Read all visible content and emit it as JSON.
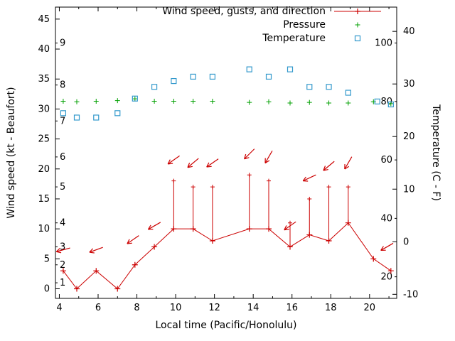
{
  "axes": {
    "x_label": "Local time (Pacific/Honolulu)",
    "y_left_label": "Wind speed (kt - Beaufort)",
    "y_right_label": "Temperature (C - F)"
  },
  "legend": {
    "position": "top-right-inside",
    "items": [
      {
        "label": "Wind speed, gusts, and direction",
        "series": "wind",
        "marker": "red-line-plus"
      },
      {
        "label": "Pressure",
        "series": "pressure",
        "marker": "green-plus"
      },
      {
        "label": "Temperature",
        "series": "temperature",
        "marker": "blue-open-square"
      }
    ]
  },
  "chart_data": {
    "type": "line",
    "title": "",
    "grid": false,
    "x_axis": {
      "label": "Local time (Pacific/Honolulu)",
      "range": [
        3.8,
        21.4
      ],
      "major_ticks": [
        4,
        6,
        8,
        10,
        12,
        14,
        16,
        18,
        20
      ],
      "minor_tick_step": 1
    },
    "y_left_axis": {
      "label": "Wind speed (kt - Beaufort)",
      "range": [
        -1.6,
        47
      ],
      "major_ticks": [
        0,
        5,
        10,
        15,
        20,
        25,
        30,
        35,
        40,
        45
      ],
      "beaufort_scale": [
        {
          "label": "1",
          "kt": 1
        },
        {
          "label": "2",
          "kt": 4
        },
        {
          "label": "3",
          "kt": 7
        },
        {
          "label": "4",
          "kt": 11
        },
        {
          "label": "5",
          "kt": 17
        },
        {
          "label": "6",
          "kt": 22
        },
        {
          "label": "7",
          "kt": 28
        },
        {
          "label": "8",
          "kt": 34
        },
        {
          "label": "9",
          "kt": 41
        }
      ]
    },
    "y_right_axis": {
      "label": "Temperature (C - F)",
      "celsius_ticks": [
        -10,
        0,
        10,
        20,
        30,
        40
      ],
      "fahrenheit_inner_ticks": [
        20,
        40,
        60,
        80,
        100
      ],
      "f_map": {
        "f0": 20,
        "left0": 2,
        "left_per_f": 0.4875
      }
    },
    "series": {
      "wind": {
        "name": "Wind speed, gusts, and direction",
        "color": "#cc0000",
        "x": [
          4.2,
          4.9,
          5.9,
          7.0,
          7.9,
          8.9,
          9.9,
          10.9,
          11.9,
          13.8,
          14.8,
          15.9,
          16.9,
          17.9,
          18.9,
          20.2,
          21.1
        ],
        "speed_kt": [
          3,
          0,
          3,
          0,
          4,
          7,
          10,
          10,
          8,
          10,
          10,
          7,
          9,
          8,
          11,
          5,
          3
        ],
        "gust_kt": [
          null,
          null,
          null,
          null,
          null,
          null,
          18,
          17,
          17,
          19,
          18,
          11,
          15,
          17,
          17,
          null,
          null
        ]
      },
      "wind_direction_arrows": {
        "color": "#cc0000",
        "arrows": [
          {
            "x": 4.2,
            "kt": 6.5,
            "angle_deg": 195
          },
          {
            "x": 5.9,
            "kt": 6.5,
            "angle_deg": 200
          },
          {
            "x": 7.8,
            "kt": 8.2,
            "angle_deg": 215
          },
          {
            "x": 8.9,
            "kt": 10.5,
            "angle_deg": 210
          },
          {
            "x": 9.9,
            "kt": 21.5,
            "angle_deg": 215
          },
          {
            "x": 10.9,
            "kt": 21.0,
            "angle_deg": 220
          },
          {
            "x": 11.9,
            "kt": 21.0,
            "angle_deg": 215
          },
          {
            "x": 13.8,
            "kt": 22.5,
            "angle_deg": 225
          },
          {
            "x": 14.8,
            "kt": 22.0,
            "angle_deg": 240
          },
          {
            "x": 15.9,
            "kt": 10.5,
            "angle_deg": 215
          },
          {
            "x": 16.9,
            "kt": 18.5,
            "angle_deg": 205
          },
          {
            "x": 17.9,
            "kt": 20.5,
            "angle_deg": 220
          },
          {
            "x": 18.9,
            "kt": 21.0,
            "angle_deg": 240
          },
          {
            "x": 20.9,
            "kt": 7.0,
            "angle_deg": 210
          }
        ]
      },
      "pressure": {
        "name": "Pressure",
        "color": "#00a000",
        "x": [
          4.2,
          4.9,
          5.9,
          7.0,
          7.9,
          8.9,
          9.9,
          10.9,
          11.9,
          13.8,
          14.8,
          15.9,
          16.9,
          17.9,
          18.9,
          20.2,
          21.1
        ],
        "y_left_units": [
          31.3,
          31.2,
          31.3,
          31.4,
          31.7,
          31.3,
          31.3,
          31.3,
          31.3,
          31.1,
          31.2,
          31.0,
          31.1,
          31.0,
          31.0,
          31.2,
          30.9
        ]
      },
      "temperature": {
        "name": "Temperature",
        "color": "#3399cc",
        "x": [
          4.2,
          4.9,
          5.9,
          7.0,
          7.9,
          8.9,
          9.9,
          10.9,
          11.9,
          13.8,
          14.8,
          15.9,
          16.9,
          17.9,
          18.9,
          20.4,
          21.1
        ],
        "deg_f": [
          76,
          74.5,
          74.5,
          76,
          81,
          85,
          87,
          88.5,
          88.5,
          91,
          88.5,
          91,
          85,
          85,
          83,
          80,
          79
        ]
      }
    }
  }
}
